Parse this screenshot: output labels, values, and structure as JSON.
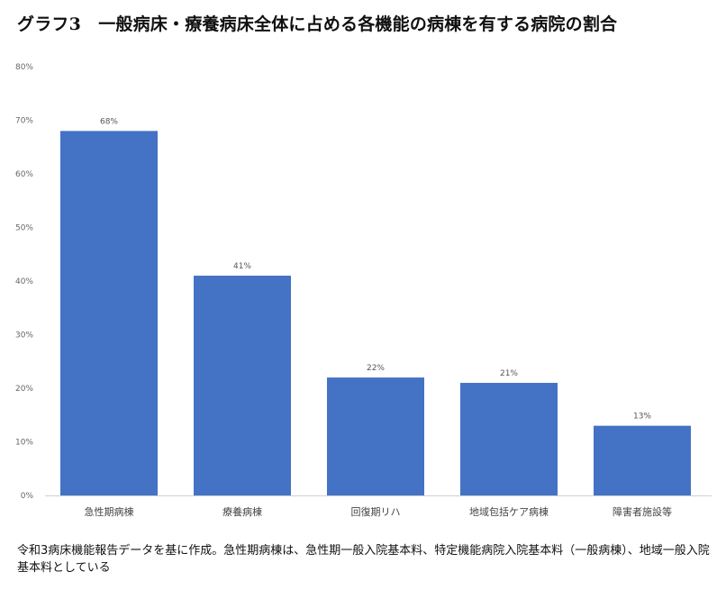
{
  "title": "グラフ3　一般病床・療養病床全体に占める各機能の病棟を有する病院の割合",
  "note": "令和3病床機能報告データを基に作成。急性期病棟は、急性期一般入院基本料、特定機能病院入院基本料（一般病棟）、地域一般入院基本料としている",
  "chart_data": {
    "type": "bar",
    "categories": [
      "急性期病棟",
      "療養病棟",
      "回復期リハ",
      "地域包括ケア病棟",
      "障害者施設等"
    ],
    "values": [
      68,
      41,
      22,
      21,
      13
    ],
    "data_labels": [
      "68%",
      "41%",
      "22%",
      "21%",
      "13%"
    ],
    "ylim": [
      0,
      80
    ],
    "yticks": [
      0,
      10,
      20,
      30,
      40,
      50,
      60,
      70,
      80
    ],
    "ytick_labels": [
      "0%",
      "10%",
      "20%",
      "30%",
      "40%",
      "50%",
      "60%",
      "70%",
      "80%"
    ],
    "bar_color": "#4472C4",
    "grid": false,
    "legend": "none"
  }
}
